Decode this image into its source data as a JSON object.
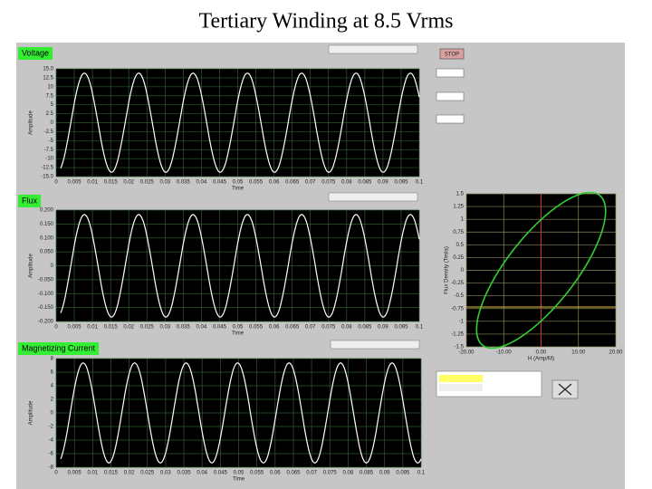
{
  "header": {
    "title": "Tertiary Winding at 8.5 Vrms"
  },
  "graphs": [
    {
      "label": "Voltage",
      "y_axis": "Amplitude",
      "x_axis": "Time",
      "yticks": [
        "15.0",
        "12.5",
        "10",
        "7.5",
        "5",
        "2.5",
        "0",
        "-2.5",
        "-5",
        "-7.5",
        "-10",
        "-12.5",
        "-15.0"
      ],
      "xticks": [
        "0",
        "0.005",
        "0.01",
        "0.015",
        "0.02",
        "0.025",
        "0.03",
        "0.035",
        "0.04",
        "0.045",
        "0.05",
        "0.055",
        "0.06",
        "0.065",
        "0.07",
        "0.075",
        "0.08",
        "0.085",
        "0.09",
        "0.095",
        "0.1"
      ]
    },
    {
      "label": "Flux",
      "y_axis": "Amplitude",
      "x_axis": "Time",
      "yticks": [
        "0.200",
        "0.150",
        "0.100",
        "0.050",
        "0",
        "-0.050",
        "-0.100",
        "-0.150",
        "-0.200"
      ],
      "xticks": [
        "0",
        "0.005",
        "0.01",
        "0.015",
        "0.02",
        "0.025",
        "0.03",
        "0.035",
        "0.04",
        "0.045",
        "0.05",
        "0.055",
        "0.06",
        "0.065",
        "0.07",
        "0.075",
        "0.08",
        "0.085",
        "0.09",
        "0.095",
        "0.1"
      ]
    },
    {
      "label": "Magnetizing Current",
      "y_axis": "Amplitude",
      "x_axis": "Time",
      "yticks": [
        "8",
        "6",
        "4",
        "2",
        "0",
        "-2",
        "-4",
        "-6",
        "-8"
      ],
      "xticks": [
        "0",
        "0.005",
        "0.01",
        "0.015",
        "0.02",
        "0.025",
        "0.03",
        "0.035",
        "0.04",
        "0.045",
        "0.05",
        "0.055",
        "0.06",
        "0.065",
        "0.07",
        "0.075",
        "0.08",
        "0.085",
        "0.09",
        "0.095",
        "0.1"
      ]
    }
  ],
  "hysteresis": {
    "x_axis": "H (Amp/M)",
    "y_axis": "Flux Density (Tesla)",
    "xticks": [
      "-20.00",
      "-10.00",
      "0.00",
      "10.00",
      "20.00"
    ],
    "yticks": [
      "1.5",
      "1.25",
      "1",
      "0.75",
      "0.5",
      "0.25",
      "0",
      "-0.25",
      "-0.5",
      "-0.75",
      "-1",
      "-1.25",
      "-1.5"
    ]
  },
  "controls": {
    "stop": "STOP"
  }
}
